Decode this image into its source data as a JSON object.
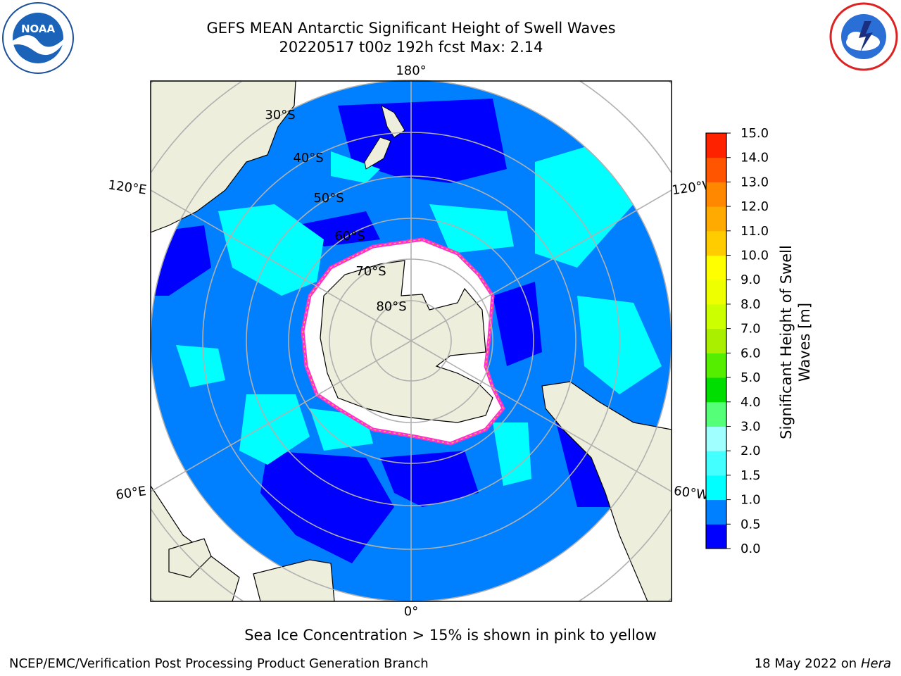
{
  "header": {
    "title": "GEFS MEAN Antarctic Significant Height of Swell Waves",
    "subtitle": "20220517 t00z 192h fcst   Max: 2.14"
  },
  "logos": {
    "left": "noaa-logo",
    "right": "national-weather-service-logo"
  },
  "map": {
    "projection": "south-polar-stereographic",
    "lon_labels": {
      "top": "180°",
      "bottom": "0°",
      "upper_left": "120°E",
      "upper_right": "120°W",
      "lower_left": "60°E",
      "lower_right": "60°W"
    },
    "lat_labels": [
      "30°S",
      "40°S",
      "50°S",
      "60°S",
      "70°S",
      "80°S"
    ],
    "colors": {
      "land": "#eeeedc",
      "ocean_low": "#0000ff",
      "ocean_mid": "#0080ff",
      "ocean_high": "#00ffff",
      "ice_edge": "#ff33cc",
      "grid": "#b0b0b0"
    }
  },
  "colorbar": {
    "label_line1": "Significant Height of Swell",
    "label_line2": "Waves [m]",
    "ticks": [
      "0.0",
      "0.5",
      "1.0",
      "1.5",
      "2.0",
      "3.0",
      "4.0",
      "5.0",
      "6.0",
      "7.0",
      "8.0",
      "9.0",
      "10.0",
      "11.0",
      "12.0",
      "13.0",
      "14.0",
      "15.0"
    ],
    "colors": [
      "#0000ff",
      "#0080ff",
      "#00ffff",
      "#44ffff",
      "#a0ffff",
      "#55ff77",
      "#00dd00",
      "#55ee00",
      "#aaee00",
      "#ccff00",
      "#eeff00",
      "#ffff00",
      "#ffcc00",
      "#ffaa00",
      "#ff8800",
      "#ff5500",
      "#ff2200",
      "#ff0000"
    ]
  },
  "footer": {
    "note": "Sea Ice Concentration > 15% is shown in pink to yellow",
    "left": "NCEP/EMC/Verification Post Processing Product Generation Branch",
    "right_date": "18 May 2022 on",
    "right_host": "Hera"
  }
}
